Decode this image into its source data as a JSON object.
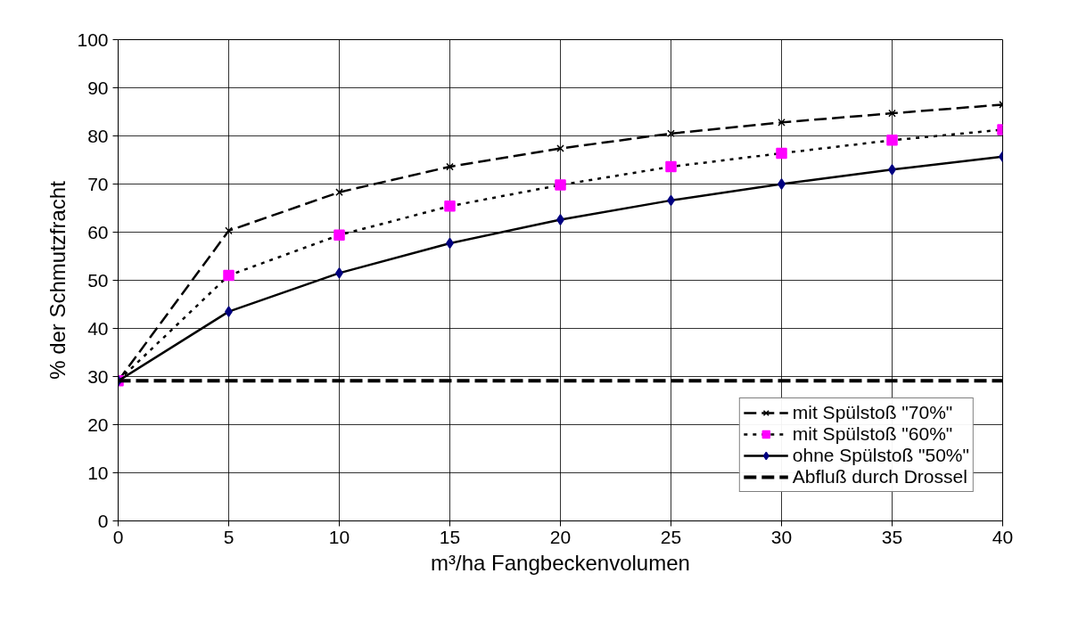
{
  "chart_data": {
    "type": "line",
    "xlabel": "m³/ha Fangbeckenvolumen",
    "ylabel": "% der Schmutzfracht",
    "x": [
      0,
      5,
      10,
      15,
      20,
      25,
      30,
      35,
      40
    ],
    "xlim": [
      0,
      40
    ],
    "xticks": [
      0,
      5,
      10,
      15,
      20,
      25,
      30,
      35,
      40
    ],
    "ylim": [
      0,
      100
    ],
    "yticks": [
      0,
      10,
      20,
      30,
      40,
      50,
      60,
      70,
      80,
      90,
      100
    ],
    "grid": true,
    "legend": "bottom right",
    "series": [
      {
        "name": "mit Spülstoß \"70%\"",
        "color": "#000000",
        "marker": "cross",
        "line_style": "dashed",
        "values": [
          29.1,
          60.3,
          68.3,
          73.6,
          77.4,
          80.5,
          82.8,
          84.7,
          86.5
        ]
      },
      {
        "name": "mit Spülstoß \"60%\"",
        "color": "#ff00ff",
        "marker": "square",
        "line_style": "dotted",
        "values": [
          29.1,
          51.0,
          59.4,
          65.4,
          69.8,
          73.6,
          76.4,
          79.1,
          81.3
        ]
      },
      {
        "name": "ohne Spülstoß \"50%\"",
        "color": "#000080",
        "marker": "diamond",
        "line_style": "solid",
        "values": [
          29.1,
          43.5,
          51.5,
          57.7,
          62.6,
          66.6,
          70.0,
          73.0,
          75.7
        ]
      },
      {
        "name": "Abfluß durch Drossel",
        "color": "#000000",
        "marker": "none",
        "line_style": "dashed",
        "values": [
          29.1,
          29.1,
          29.1,
          29.1,
          29.1,
          29.1,
          29.1,
          29.1,
          29.1
        ]
      }
    ]
  }
}
